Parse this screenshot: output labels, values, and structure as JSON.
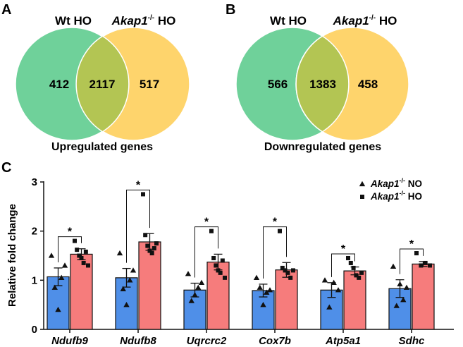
{
  "panels": {
    "a": {
      "letter": "A",
      "left_label": "Wt HO",
      "right_label_gene": "Akap1",
      "right_label_sup": "-/-",
      "right_label_suffix": " HO",
      "left_only": "412",
      "overlap": "2117",
      "right_only": "517",
      "caption": "Upregulated genes"
    },
    "b": {
      "letter": "B",
      "left_label": "Wt HO",
      "right_label_gene": "Akap1",
      "right_label_sup": "-/-",
      "right_label_suffix": " HO",
      "left_only": "566",
      "overlap": "1383",
      "right_only": "458",
      "caption": "Downregulated genes"
    },
    "c": {
      "letter": "C"
    }
  },
  "colors": {
    "venn_left": "#6fd19a",
    "venn_right": "#fed46c",
    "venn_overlap": "#b3c553",
    "bar_no": "#4f8fe8",
    "bar_ho": "#f67c7c"
  },
  "chart_data": {
    "type": "bar",
    "categories": [
      "Ndufb9",
      "Ndufb8",
      "Uqrcrc2",
      "Cox7b",
      "Atp5a1",
      "Sdhc"
    ],
    "ylabel": "Relative fold change",
    "ylim": [
      0,
      3
    ],
    "yticks": [
      "0",
      "1",
      "2",
      "3"
    ],
    "grid": false,
    "legend_position": "top-right",
    "significance": [
      "*",
      "*",
      "*",
      "*",
      "*",
      "*"
    ],
    "series": [
      {
        "legend_gene": "Akap1",
        "legend_sup": "-/-",
        "legend_suffix": " NO",
        "marker": "triangle",
        "values": [
          1.07,
          1.05,
          0.8,
          0.79,
          0.8,
          0.83
        ],
        "errors": [
          0.18,
          0.19,
          0.14,
          0.13,
          0.15,
          0.18
        ],
        "points": [
          [
            1.5,
            0.85,
            0.4,
            1.05,
            1.3
          ],
          [
            1.55,
            0.82,
            0.5,
            1.0,
            1.2
          ],
          [
            1.13,
            0.58,
            0.7,
            0.85,
            0.95
          ],
          [
            1.05,
            0.85,
            0.5,
            0.75,
            0.8
          ],
          [
            1.0,
            0.45,
            0.95,
            0.8
          ],
          [
            1.28,
            0.48,
            0.92,
            0.6,
            0.85
          ]
        ]
      },
      {
        "legend_gene": "Akap1",
        "legend_sup": "-/-",
        "legend_suffix": " HO",
        "marker": "square",
        "values": [
          1.53,
          1.78,
          1.37,
          1.21,
          1.19,
          1.33
        ],
        "errors": [
          0.11,
          0.17,
          0.16,
          0.15,
          0.08,
          0.05
        ],
        "points": [
          [
            1.8,
            1.62,
            1.5,
            1.45,
            1.35,
            1.58,
            1.3
          ],
          [
            2.75,
            1.92,
            1.7,
            1.6,
            1.55,
            1.65,
            1.75
          ],
          [
            2.0,
            1.45,
            1.3,
            1.2,
            1.15,
            1.4,
            1.05
          ],
          [
            2.0,
            1.25,
            1.2,
            1.15,
            1.05,
            1.2
          ],
          [
            1.45,
            1.35,
            1.25,
            1.1,
            1.05,
            1.15
          ],
          [
            1.55,
            1.3,
            1.35,
            1.3
          ]
        ]
      }
    ]
  }
}
